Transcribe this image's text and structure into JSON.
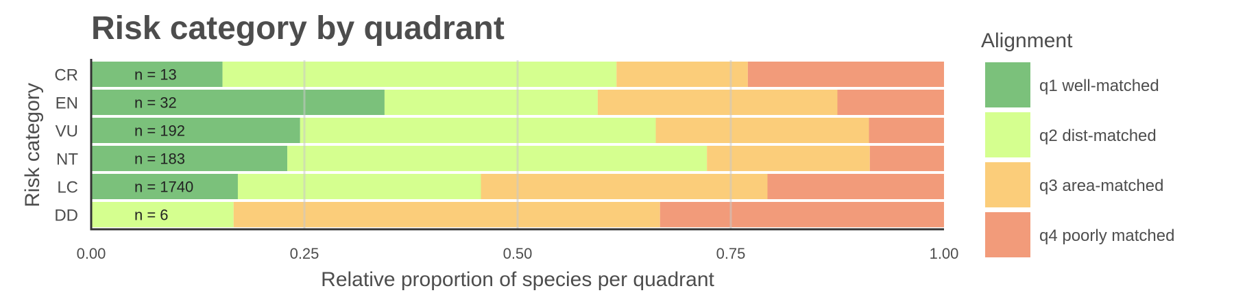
{
  "chart_data": {
    "type": "bar",
    "orientation": "horizontal",
    "stacked": true,
    "title": "Risk category by quadrant",
    "xlabel": "Relative proportion of species per quadrant",
    "ylabel": "Risk category",
    "xlim": [
      0,
      1
    ],
    "xticks": [
      "0.00",
      "0.25",
      "0.50",
      "0.75",
      "1.00"
    ],
    "xtick_values": [
      0,
      0.25,
      0.5,
      0.75,
      1
    ],
    "grid": true,
    "legend_position": "right",
    "legend_title": "Alignment",
    "categories": [
      "CR",
      "EN",
      "VU",
      "NT",
      "LC",
      "DD"
    ],
    "n_labels": [
      "n = 13",
      "n = 32",
      "n = 192",
      "n = 183",
      "n = 1740",
      "n = 6"
    ],
    "series": [
      {
        "name": "q1 well-matched",
        "color": "#7bc17b",
        "values": [
          0.154,
          0.344,
          0.245,
          0.23,
          0.172,
          0
        ]
      },
      {
        "name": "q2 dist-matched",
        "color": "#d5ff8f",
        "values": [
          0.462,
          0.25,
          0.417,
          0.492,
          0.285,
          0.167
        ]
      },
      {
        "name": "q3 area-matched",
        "color": "#fbcd7a",
        "values": [
          0.154,
          0.281,
          0.25,
          0.191,
          0.336,
          0.5
        ]
      },
      {
        "name": "q4 poorly matched",
        "color": "#f29b7a",
        "values": [
          0.23,
          0.125,
          0.088,
          0.087,
          0.207,
          0.333
        ]
      }
    ]
  }
}
